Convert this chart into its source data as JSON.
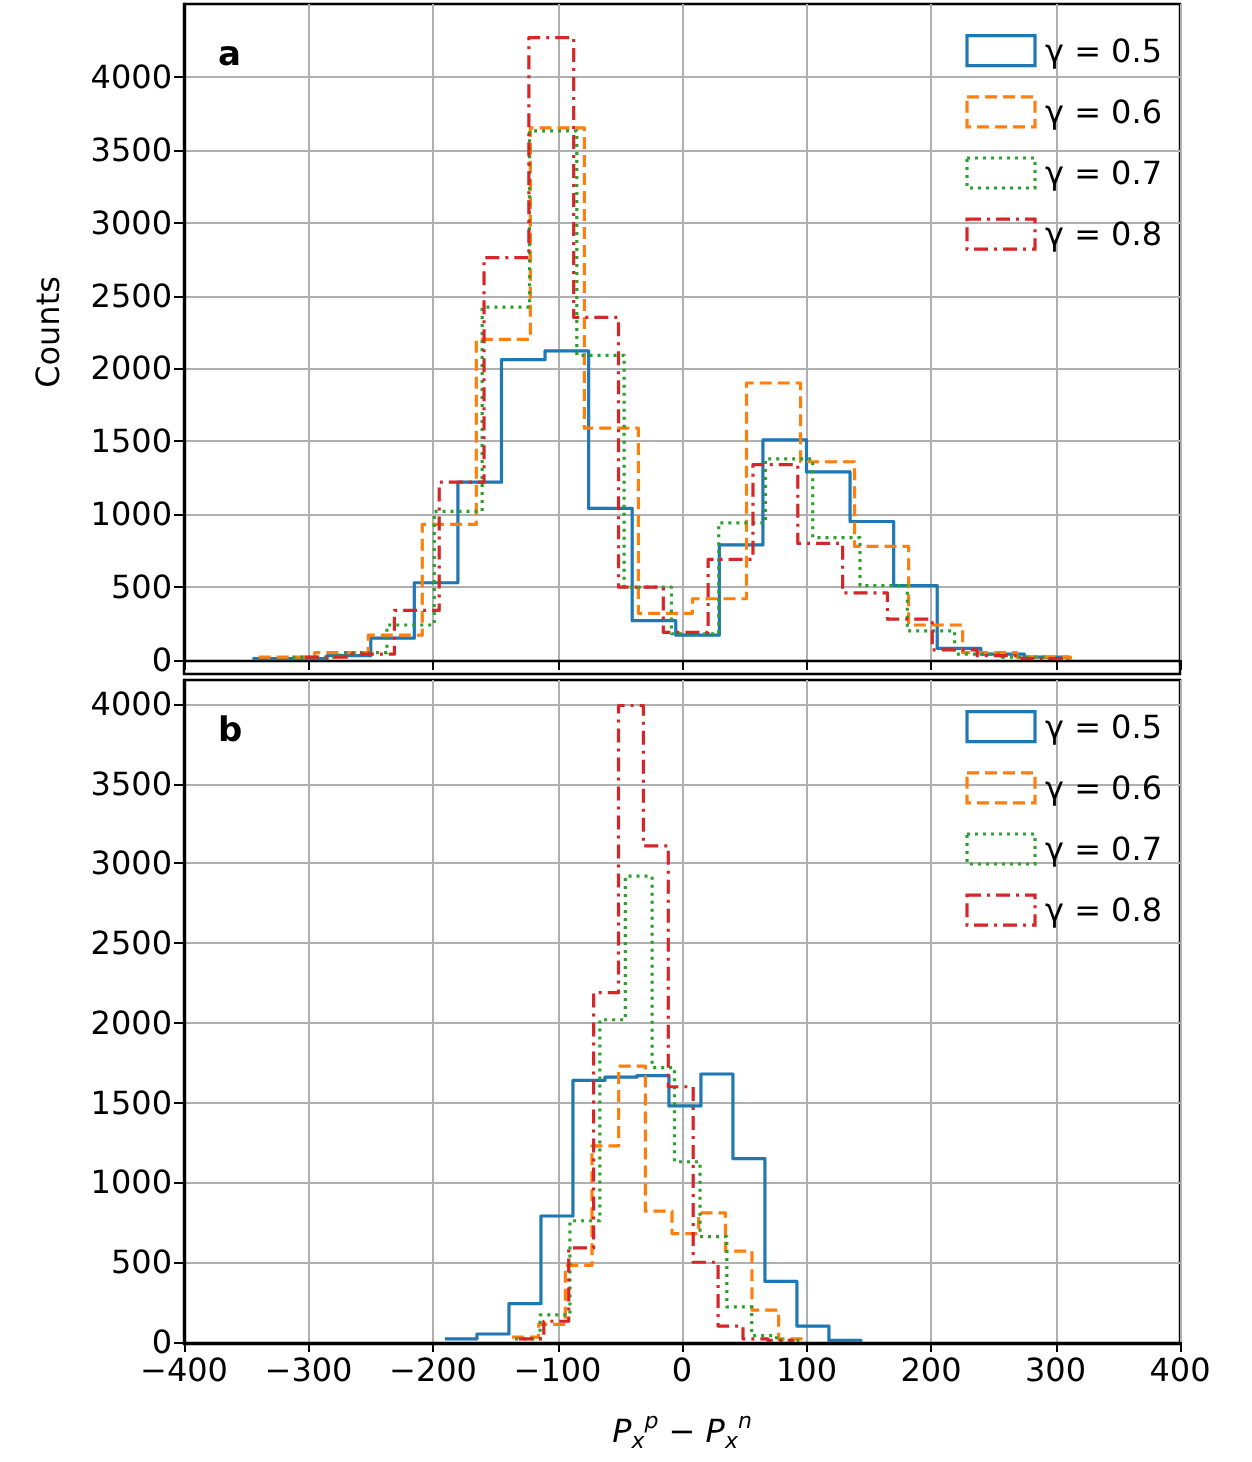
{
  "chart_data": [
    {
      "type": "step",
      "title": "a",
      "ylabel": "Counts",
      "xlim": [
        -400,
        400
      ],
      "xticks": [
        -400,
        -300,
        -200,
        -100,
        0,
        100,
        200,
        300,
        400
      ],
      "ylim": [
        0,
        4500
      ],
      "yticks": [
        0,
        500,
        1000,
        1500,
        2000,
        2500,
        3000,
        3500,
        4000
      ],
      "tick_labels": "y",
      "grid": true,
      "legend": "top right",
      "series": [
        {
          "name": "γ = 0.5",
          "color": "#1f77b4",
          "line_style": "solid",
          "x": [
            -345,
            -285,
            -250,
            -215,
            -180,
            -145,
            -110,
            -75,
            -40,
            -5,
            30,
            65,
            100,
            135,
            170,
            205,
            240,
            275,
            310
          ],
          "values": [
            10,
            30,
            150,
            530,
            1220,
            2060,
            2120,
            1040,
            270,
            170,
            790,
            1510,
            1290,
            950,
            510,
            80,
            40,
            20,
            0
          ]
        },
        {
          "name": "γ = 0.6",
          "color": "#ff7f0e",
          "line_style": "dashed",
          "x": [
            -340,
            -295,
            -252,
            -208.6,
            -165.2,
            -121.8,
            -78.4,
            -35,
            8.4,
            51.8,
            95.2,
            138.6,
            182,
            225.4,
            268.8,
            312
          ],
          "values": [
            20,
            50,
            170,
            930,
            2200,
            3650,
            1590,
            320,
            420,
            1900,
            1360,
            780,
            240,
            50,
            20,
            0
          ]
        },
        {
          "name": "γ = 0.7",
          "color": "#2ca02c",
          "line_style": "dotted",
          "x": [
            -313,
            -275,
            -237,
            -199,
            -160.5,
            -122.5,
            -84.5,
            -46.5,
            -8.5,
            29.5,
            67,
            105,
            143,
            181,
            219,
            257,
            295
          ],
          "values": [
            20,
            50,
            240,
            1020,
            2420,
            3630,
            2090,
            500,
            180,
            940,
            1380,
            840,
            510,
            200,
            40,
            20,
            0
          ]
        },
        {
          "name": "γ = 0.8",
          "color": "#d62728",
          "line_style": "dashdot",
          "x": [
            -303,
            -267,
            -231,
            -195,
            -159,
            -123,
            -87,
            -51,
            -15,
            21,
            57,
            93,
            129,
            165,
            201,
            237,
            273,
            309
          ],
          "values": [
            20,
            40,
            340,
            1220,
            2760,
            4270,
            2350,
            500,
            190,
            690,
            1340,
            800,
            460,
            280,
            70,
            30,
            10,
            0
          ]
        }
      ]
    },
    {
      "type": "step",
      "title": "b",
      "xlabel": "P$_{x}$$^{p}$ − P$_{x}$$^{n}$",
      "xlim": [
        -400,
        400
      ],
      "xticks": [
        -400,
        -300,
        -200,
        -100,
        0,
        100,
        200,
        300,
        400
      ],
      "ylim": [
        0,
        4150
      ],
      "yticks": [
        0,
        500,
        1000,
        1500,
        2000,
        2500,
        3000,
        3500,
        4000
      ],
      "grid": true,
      "legend": "top right",
      "series": [
        {
          "name": "γ = 0.5",
          "color": "#1f77b4",
          "line_style": "solid",
          "x": [
            -190.4,
            -164.7,
            -139,
            -113.3,
            -87.6,
            -61.9,
            -36.2,
            -10.5,
            15.2,
            40.9,
            66.6,
            92.3,
            118,
            143.7
          ],
          "values": [
            20,
            50,
            240,
            790,
            1640,
            1660,
            1670,
            1480,
            1680,
            1150,
            380,
            100,
            10,
            0
          ]
        },
        {
          "name": "γ = 0.6",
          "color": "#ff7f0e",
          "line_style": "dashed",
          "x": [
            -136.6,
            -115.2,
            -93.7,
            -72.3,
            -50.9,
            -29.4,
            -8,
            13.4,
            34.9,
            56.2,
            77.6,
            99
          ],
          "values": [
            30,
            110,
            480,
            1230,
            1730,
            820,
            680,
            810,
            570,
            200,
            20,
            0
          ]
        },
        {
          "name": "γ = 0.7",
          "color": "#2ca02c",
          "line_style": "dotted",
          "x": [
            -134,
            -114,
            -90,
            -66,
            -45.5,
            -24,
            -6,
            14.5,
            36,
            56,
            76,
            96
          ],
          "values": [
            20,
            170,
            760,
            2020,
            2920,
            1720,
            1130,
            660,
            220,
            40,
            10,
            0
          ]
        },
        {
          "name": "γ = 0.8",
          "color": "#d62728",
          "line_style": "dashdot",
          "x": [
            -131,
            -111,
            -91,
            -71,
            -51,
            -31,
            -11,
            9,
            29,
            49,
            69,
            89
          ],
          "values": [
            20,
            130,
            590,
            2190,
            3990,
            3110,
            1600,
            500,
            100,
            20,
            10,
            0
          ]
        }
      ]
    }
  ]
}
